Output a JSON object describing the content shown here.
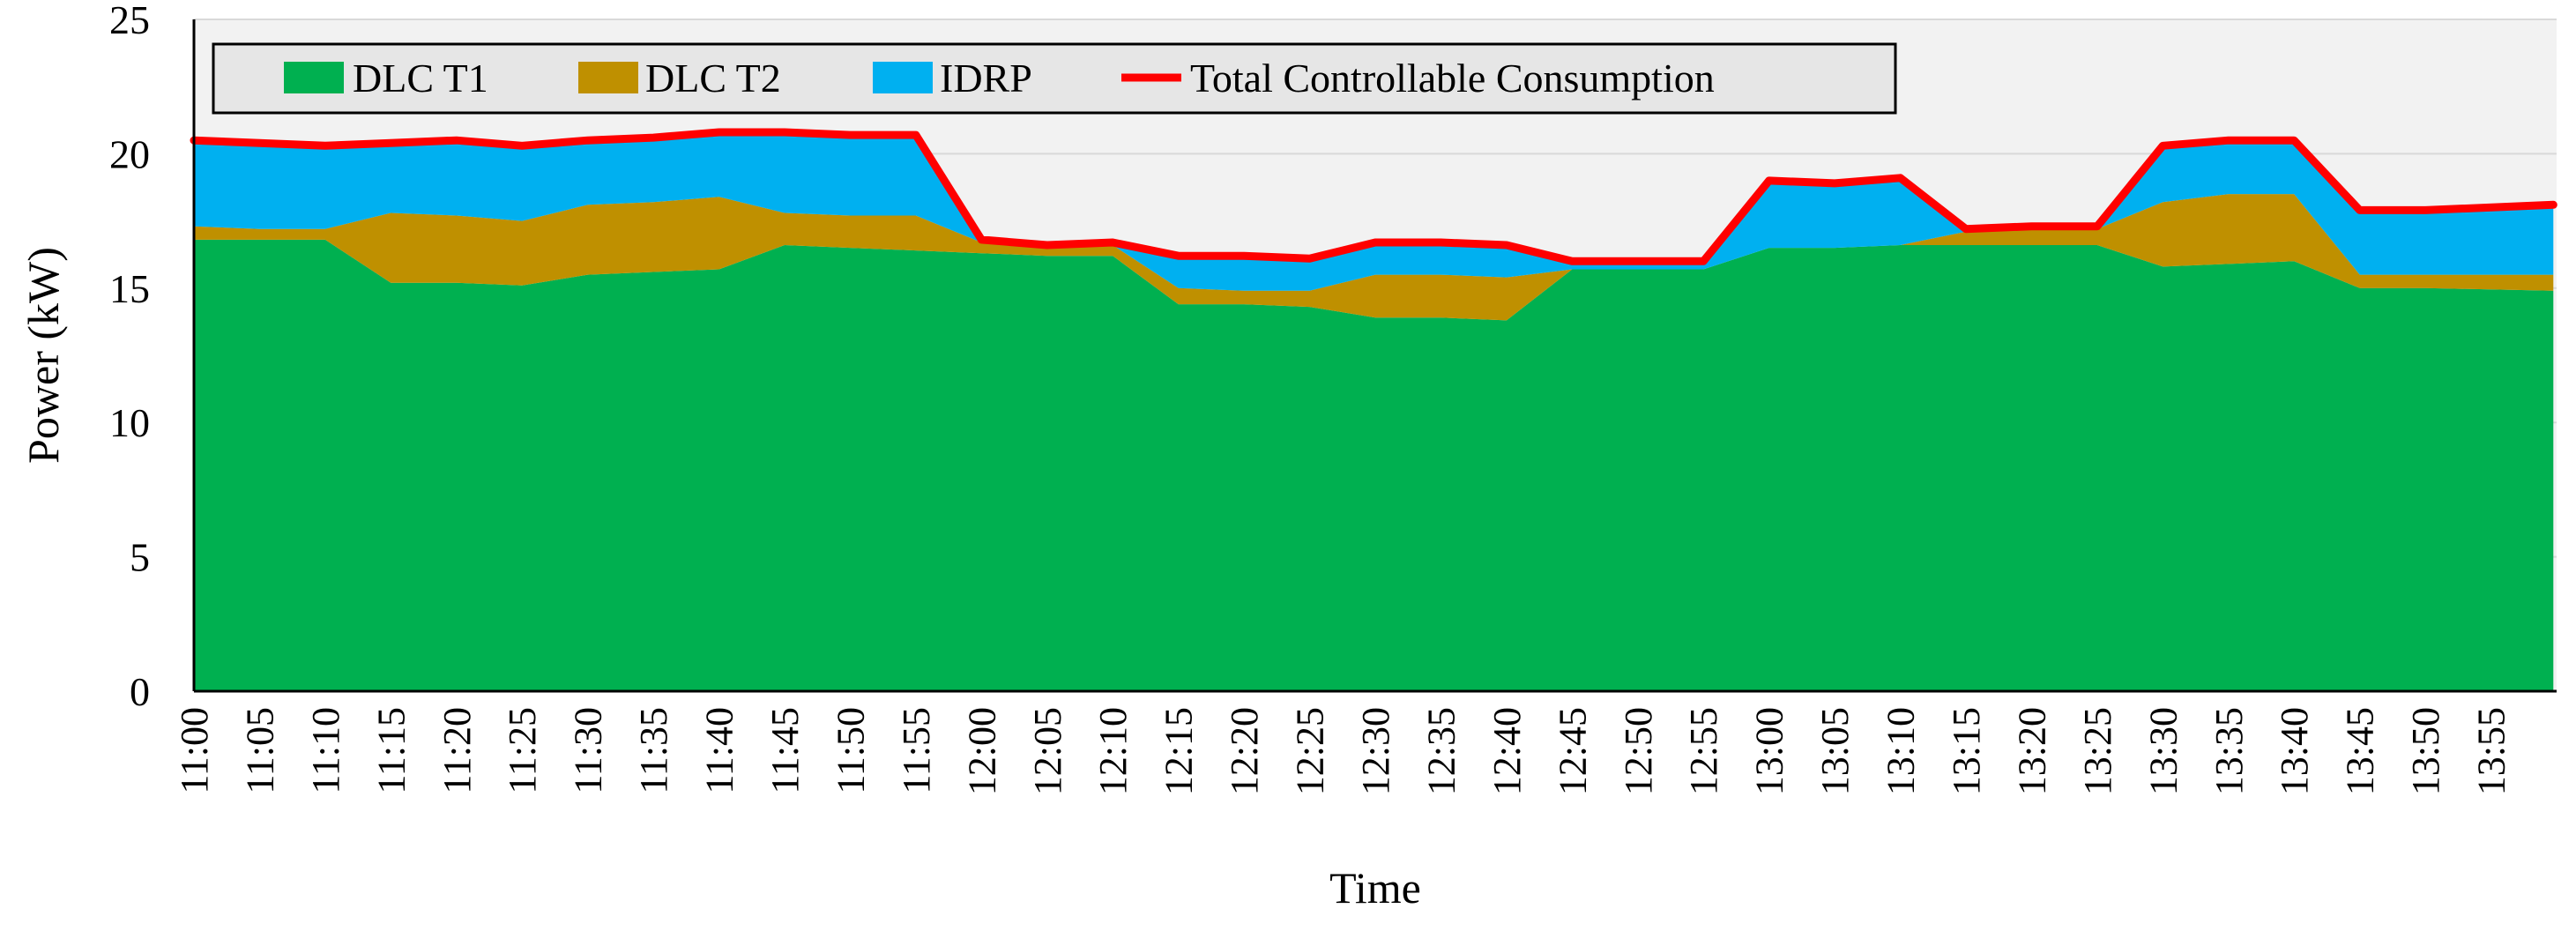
{
  "chart_data": {
    "type": "area",
    "stacked": true,
    "title": "",
    "xlabel": "Time",
    "ylabel": "Power (kW)",
    "ylim": [
      0,
      25
    ],
    "yticks": [
      "0",
      "5",
      "10",
      "15",
      "20",
      "25"
    ],
    "grid": true,
    "legend_position": "top-left",
    "x_tick_labels": [
      "11:00",
      "11:05",
      "11:10",
      "11:15",
      "11:20",
      "11:25",
      "11:30",
      "11:35",
      "11:40",
      "11:45",
      "11:50",
      "11:55",
      "12:00",
      "12:05",
      "12:10",
      "12:15",
      "12:20",
      "12:25",
      "12:30",
      "12:35",
      "12:40",
      "12:45",
      "12:50",
      "12:55",
      "13:00",
      "13:05",
      "13:10",
      "13:15",
      "13:20",
      "13:25",
      "13:30",
      "13:35",
      "13:40",
      "13:45",
      "13:50",
      "13:55"
    ],
    "x_resolution_minutes": 5,
    "series": [
      {
        "name": "DLC T1",
        "kind": "area",
        "color": "#00B050",
        "values": [
          16.8,
          16.8,
          16.8,
          15.2,
          15.2,
          15.1,
          15.5,
          15.6,
          15.7,
          16.6,
          16.5,
          16.4,
          16.3,
          16.2,
          16.2,
          14.4,
          14.4,
          14.3,
          13.9,
          13.9,
          13.8,
          15.7,
          15.7,
          15.7,
          16.5,
          16.5,
          16.6,
          16.6,
          16.6,
          16.6,
          15.8,
          15.9,
          16.0,
          15.0,
          15.0,
          14.9
        ]
      },
      {
        "name": "DLC T2",
        "kind": "area",
        "color": "#BF9000",
        "values": [
          0.5,
          0.4,
          0.4,
          2.6,
          2.5,
          2.4,
          2.6,
          2.6,
          2.7,
          1.2,
          1.2,
          1.3,
          0.4,
          0.3,
          0.4,
          0.6,
          0.5,
          0.6,
          1.6,
          1.6,
          1.6,
          0.0,
          0.0,
          0.0,
          0.0,
          0.0,
          0.0,
          0.5,
          0.6,
          0.6,
          2.4,
          2.6,
          2.5,
          0.5,
          0.5,
          0.6
        ]
      },
      {
        "name": "IDRP",
        "kind": "area",
        "color": "#00B0F0",
        "values": [
          3.2,
          3.2,
          3.1,
          2.6,
          2.8,
          2.8,
          2.4,
          2.4,
          2.4,
          3.0,
          3.0,
          3.0,
          0.1,
          0.1,
          0.1,
          1.2,
          1.3,
          1.2,
          1.2,
          1.2,
          1.2,
          0.3,
          0.3,
          0.3,
          2.5,
          2.4,
          2.5,
          0.1,
          0.1,
          0.1,
          2.1,
          2.0,
          2.0,
          2.4,
          2.4,
          2.6
        ]
      },
      {
        "name": "Total Controllable Consumption",
        "kind": "line",
        "color": "#FF0000",
        "values": [
          20.5,
          20.4,
          20.3,
          20.4,
          20.5,
          20.3,
          20.5,
          20.6,
          20.8,
          20.8,
          20.7,
          20.7,
          16.8,
          16.6,
          16.7,
          16.2,
          16.2,
          16.1,
          16.7,
          16.7,
          16.6,
          16.0,
          16.0,
          16.0,
          19.0,
          18.9,
          19.1,
          17.2,
          17.3,
          17.3,
          20.3,
          20.5,
          20.5,
          17.9,
          17.9,
          18.1
        ]
      }
    ]
  }
}
